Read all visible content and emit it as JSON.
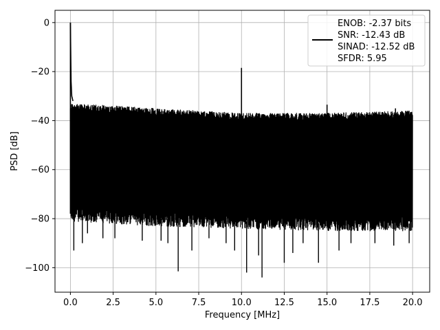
{
  "chart_data": {
    "type": "line",
    "xlabel": "Frequency [MHz]",
    "ylabel": "PSD [dB]",
    "xlim": [
      -0.9,
      21.0
    ],
    "ylim": [
      -110,
      5
    ],
    "x_ticks": [
      0.0,
      2.5,
      5.0,
      7.5,
      10.0,
      12.5,
      15.0,
      17.5,
      20.0
    ],
    "x_tick_labels": [
      "0.0",
      "2.5",
      "5.0",
      "7.5",
      "10.0",
      "12.5",
      "15.0",
      "17.5",
      "20.0"
    ],
    "y_ticks": [
      0,
      -20,
      -40,
      -60,
      -80,
      -100
    ],
    "y_tick_labels": [
      "0",
      "−20",
      "−40",
      "−60",
      "−80",
      "−100"
    ],
    "grid": true,
    "legend_position": "top-right",
    "series_color": "#000000",
    "legend": {
      "lines": [
        "ENOB: -2.37 bits",
        "SNR: -12.43 dB",
        "SINAD: -12.52 dB",
        "SFDR: 5.95"
      ]
    },
    "series": [
      {
        "x_range": [
          0.0,
          20.0
        ],
        "noise_upper_db": [
          -33,
          -35,
          -37,
          -37,
          -36
        ],
        "noise_lower_db": [
          -78,
          -80,
          -81,
          -82,
          -82
        ],
        "peaks": [
          {
            "x": 0.0,
            "y": 0.0
          },
          {
            "x": 10.0,
            "y": -18.5
          },
          {
            "x": 15.0,
            "y": -33.5
          },
          {
            "x": 19.0,
            "y": -35
          }
        ],
        "dips": [
          {
            "x": 0.2,
            "y": -93
          },
          {
            "x": 0.7,
            "y": -90
          },
          {
            "x": 1.0,
            "y": -86
          },
          {
            "x": 1.9,
            "y": -88
          },
          {
            "x": 2.6,
            "y": -88
          },
          {
            "x": 4.2,
            "y": -89
          },
          {
            "x": 5.3,
            "y": -89
          },
          {
            "x": 5.7,
            "y": -90
          },
          {
            "x": 6.3,
            "y": -101.5
          },
          {
            "x": 7.1,
            "y": -93
          },
          {
            "x": 8.1,
            "y": -88
          },
          {
            "x": 9.1,
            "y": -90
          },
          {
            "x": 9.6,
            "y": -93
          },
          {
            "x": 10.3,
            "y": -102
          },
          {
            "x": 11.0,
            "y": -95
          },
          {
            "x": 11.2,
            "y": -104
          },
          {
            "x": 12.5,
            "y": -98
          },
          {
            "x": 13.0,
            "y": -94
          },
          {
            "x": 13.6,
            "y": -90
          },
          {
            "x": 14.5,
            "y": -98
          },
          {
            "x": 15.7,
            "y": -93
          },
          {
            "x": 16.4,
            "y": -90
          },
          {
            "x": 17.8,
            "y": -90
          },
          {
            "x": 18.9,
            "y": -91
          },
          {
            "x": 19.8,
            "y": -90
          }
        ]
      }
    ]
  }
}
